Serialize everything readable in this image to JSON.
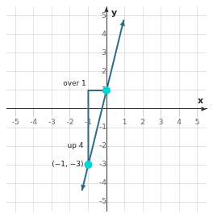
{
  "chart_data": {
    "type": "line",
    "xlabel": "x",
    "ylabel": "y",
    "xlim": [
      -5.5,
      5.5
    ],
    "ylim": [
      -5.5,
      5.5
    ],
    "xticks": [
      -5,
      -4,
      -3,
      -2,
      -1,
      1,
      2,
      3,
      4,
      5
    ],
    "yticks": [
      -5,
      -4,
      -3,
      -2,
      -1,
      1,
      2,
      3,
      4,
      5
    ],
    "grid": true,
    "series": [
      {
        "type": "line",
        "color": "#2e6b87",
        "marker": "arrow",
        "x": [
          -1.35,
          0.95
        ],
        "values": [
          -4.4,
          4.8
        ]
      },
      {
        "type": "line",
        "color": "#2e6b87",
        "x": [
          -1,
          -1,
          0
        ],
        "values": [
          -3,
          1,
          1
        ]
      },
      {
        "type": "scatter",
        "color": "#00d4d4",
        "marker": "circle",
        "x": [
          -1,
          0
        ],
        "values": [
          -3,
          1
        ]
      }
    ],
    "annotations": [
      {
        "text": "(−1, −3)",
        "x": -1,
        "y": -3
      },
      {
        "text": "up 4",
        "x": -1,
        "y": -2
      },
      {
        "text": "over 1",
        "x": -0.85,
        "y": 1.35
      }
    ]
  }
}
